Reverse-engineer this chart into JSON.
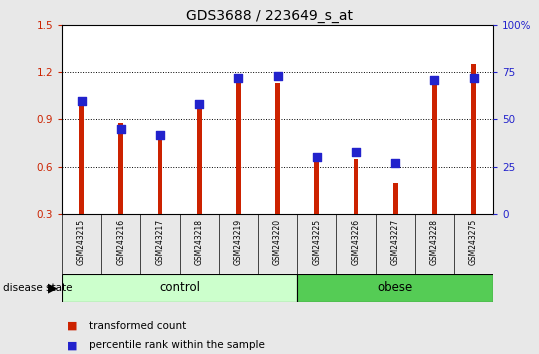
{
  "title": "GDS3688 / 223649_s_at",
  "samples": [
    "GSM243215",
    "GSM243216",
    "GSM243217",
    "GSM243218",
    "GSM243219",
    "GSM243220",
    "GSM243225",
    "GSM243226",
    "GSM243227",
    "GSM243228",
    "GSM243275"
  ],
  "transformed_count": [
    1.0,
    0.88,
    0.77,
    1.0,
    1.13,
    1.13,
    0.66,
    0.65,
    0.5,
    1.17,
    1.25
  ],
  "percentile_rank": [
    60,
    45,
    42,
    58,
    72,
    73,
    30,
    33,
    27,
    71,
    72
  ],
  "ylim_left": [
    0.3,
    1.5
  ],
  "ylim_right": [
    0,
    100
  ],
  "yticks_left": [
    0.3,
    0.6,
    0.9,
    1.2,
    1.5
  ],
  "yticks_right": [
    0,
    25,
    50,
    75,
    100
  ],
  "bar_color": "#cc2200",
  "dot_color": "#2222cc",
  "bar_width": 0.12,
  "dot_size": 28,
  "bg_color": "#e8e8e8",
  "plot_bg": "#ffffff",
  "label_bg": "#cccccc",
  "left_tick_color": "#cc2200",
  "right_tick_color": "#2222cc",
  "legend_red_label": "transformed count",
  "legend_blue_label": "percentile rank within the sample",
  "disease_state_label": "disease state",
  "ctrl_color": "#ccffcc",
  "obese_color": "#55cc55",
  "ctrl_n": 6,
  "grid_color": "#000000",
  "grid_ticks": [
    0.6,
    0.9,
    1.2
  ]
}
